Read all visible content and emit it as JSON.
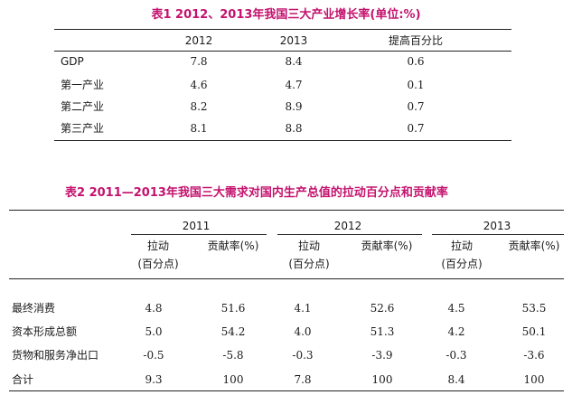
{
  "table1": {
    "title": "表1  2012、2013年我国三大产业增长率(单位:%)",
    "headers": [
      "2012",
      "2013",
      "提高百分比"
    ],
    "rows": [
      {
        "label": "GDP",
        "v2012": "7.8",
        "v2013": "8.4",
        "diff": "0.6"
      },
      {
        "label": "第一产业",
        "v2012": "4.6",
        "v2013": "4.7",
        "diff": "0.1"
      },
      {
        "label": "第二产业",
        "v2012": "8.2",
        "v2013": "8.9",
        "diff": "0.7"
      },
      {
        "label": "第三产业",
        "v2012": "8.1",
        "v2013": "8.8",
        "diff": "0.7"
      }
    ]
  },
  "table2": {
    "title": "表2  2011—2013年我国三大需求对国内生产总值的拉动百分点和贡献率",
    "years": [
      "2011",
      "2012",
      "2013"
    ],
    "sub_pull_1": "拉动",
    "sub_pull_2": "(百分点)",
    "sub_contrib": "贡献率(%)",
    "rows": [
      {
        "label": "最终消费",
        "values": [
          "4.8",
          "51.6",
          "4.1",
          "52.6",
          "4.5",
          "53.5"
        ]
      },
      {
        "label": "资本形成总额",
        "values": [
          "5.0",
          "54.2",
          "4.0",
          "51.3",
          "4.2",
          "50.1"
        ]
      },
      {
        "label": "货物和服务净出口",
        "values": [
          "-0.5",
          "-5.8",
          "-0.3",
          "-3.9",
          "-0.3",
          "-3.6"
        ]
      },
      {
        "label": "合计",
        "values": [
          "9.3",
          "100",
          "7.8",
          "100",
          "8.4",
          "100"
        ]
      }
    ]
  }
}
